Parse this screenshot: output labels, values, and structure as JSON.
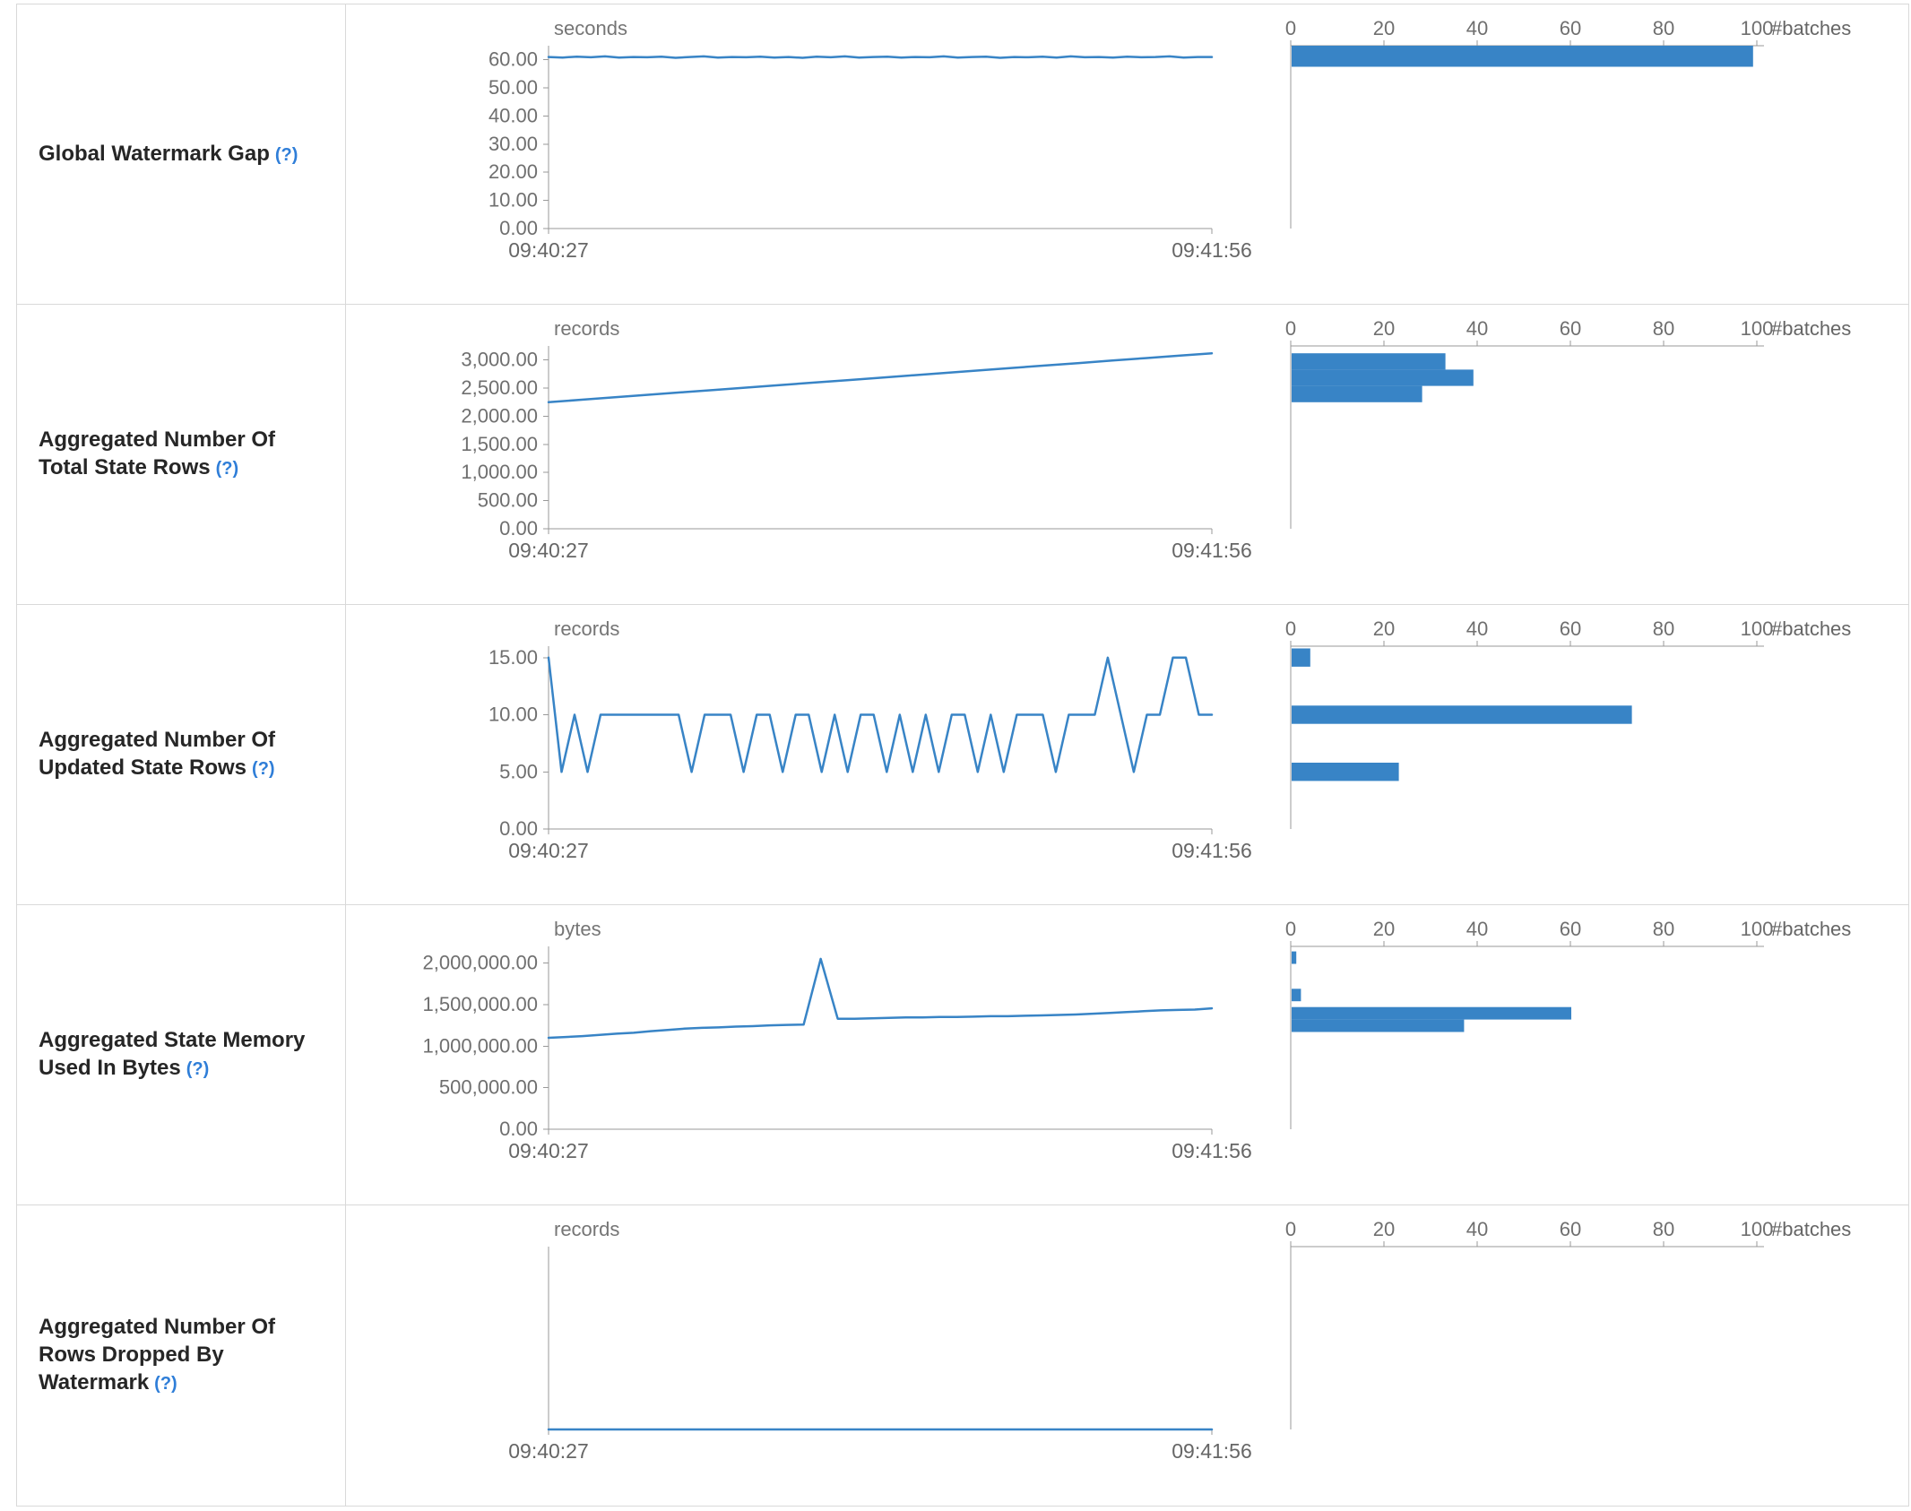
{
  "colors": {
    "accent": "#3884c6",
    "axis_line": "#999999",
    "tick_text": "#6f6f6f",
    "unit_text": "#757575",
    "time_text": "#666666",
    "label_text": "#262626",
    "help_link": "#2f7ed8",
    "border": "#d9d9d9",
    "background": "#ffffff"
  },
  "rows": [
    {
      "label": "Global Watermark Gap",
      "help": "(?)"
    },
    {
      "label": "Aggregated Number Of Total State Rows",
      "help": "(?)"
    },
    {
      "label": "Aggregated Number Of Updated State Rows",
      "help": "(?)"
    },
    {
      "label": "Aggregated State Memory Used In Bytes",
      "help": "(?)"
    },
    {
      "label": "Aggregated Number Of Rows Dropped By Watermark",
      "help": "(?)"
    }
  ],
  "chart_data": [
    {
      "type": "line",
      "title": "Global Watermark Gap",
      "timeline": {
        "unit": "seconds",
        "x_labels": [
          "09:40:27",
          "09:41:56"
        ],
        "y_max": 65,
        "tick_values": [
          60,
          50,
          40,
          30,
          20,
          10,
          0
        ],
        "tick_labels": [
          "60.00",
          "50.00",
          "40.00",
          "30.00",
          "20.00",
          "10.00",
          "0.00"
        ],
        "values": [
          61,
          60.8,
          61.1,
          60.9,
          61.2,
          60.8,
          61,
          60.9,
          61.1,
          60.7,
          61,
          61.2,
          60.8,
          61,
          60.9,
          61.1,
          60.8,
          61,
          60.7,
          61.1,
          60.9,
          61.2,
          60.8,
          61,
          61.1,
          60.8,
          61,
          60.9,
          61.2,
          60.8,
          61,
          61.1,
          60.7,
          61,
          60.9,
          61.1,
          60.8,
          61.2,
          60.9,
          61,
          60.8,
          61.1,
          60.9,
          61,
          61.2,
          60.8,
          61,
          61
        ]
      },
      "histogram": {
        "type": "bar",
        "x_label": "#batches",
        "x_max": 100,
        "tick_values": [
          0,
          20,
          40,
          60,
          80,
          100
        ],
        "bars": [
          {
            "from": 57.5,
            "to": 65,
            "count": 99
          }
        ]
      }
    },
    {
      "type": "line",
      "title": "Aggregated Number Of Total State Rows",
      "timeline": {
        "unit": "records",
        "x_labels": [
          "09:40:27",
          "09:41:56"
        ],
        "y_max": 3250,
        "tick_values": [
          3000,
          2500,
          2000,
          1500,
          1000,
          500,
          0
        ],
        "tick_labels": [
          "3,000.00",
          "2,500.00",
          "2,000.00",
          "1,500.00",
          "1,000.00",
          "500.00",
          "0.00"
        ],
        "values": [
          2250,
          2294,
          2337,
          2381,
          2424,
          2468,
          2511,
          2555,
          2598,
          2642,
          2685,
          2729,
          2772,
          2816,
          2859,
          2903,
          2946,
          2990,
          3033,
          3077,
          3120
        ]
      },
      "histogram": {
        "type": "bar",
        "x_label": "#batches",
        "x_max": 100,
        "tick_values": [
          0,
          20,
          40,
          60,
          80,
          100
        ],
        "bars": [
          {
            "from": 2830,
            "to": 3120,
            "count": 33
          },
          {
            "from": 2540,
            "to": 2830,
            "count": 39
          },
          {
            "from": 2250,
            "to": 2540,
            "count": 28
          }
        ]
      }
    },
    {
      "type": "line",
      "title": "Aggregated Number Of Updated State Rows",
      "timeline": {
        "unit": "records",
        "x_labels": [
          "09:40:27",
          "09:41:56"
        ],
        "y_max": 16,
        "tick_values": [
          15,
          10,
          5,
          0
        ],
        "tick_labels": [
          "15.00",
          "10.00",
          "5.00",
          "0.00"
        ],
        "values": [
          15,
          5,
          10,
          5,
          10,
          10,
          10,
          10,
          10,
          10,
          10,
          5,
          10,
          10,
          10,
          5,
          10,
          10,
          5,
          10,
          10,
          5,
          10,
          5,
          10,
          10,
          5,
          10,
          5,
          10,
          5,
          10,
          10,
          5,
          10,
          5,
          10,
          10,
          10,
          5,
          10,
          10,
          10,
          15,
          10,
          5,
          10,
          10,
          15,
          15,
          10,
          10
        ]
      },
      "histogram": {
        "type": "bar",
        "x_label": "#batches",
        "x_max": 100,
        "tick_values": [
          0,
          20,
          40,
          60,
          80,
          100
        ],
        "bars": [
          {
            "from": 14.2,
            "to": 15.8,
            "count": 4
          },
          {
            "from": 9.2,
            "to": 10.8,
            "count": 73
          },
          {
            "from": 4.2,
            "to": 5.8,
            "count": 23
          }
        ]
      }
    },
    {
      "type": "line",
      "title": "Aggregated State Memory Used In Bytes",
      "timeline": {
        "unit": "bytes",
        "x_labels": [
          "09:40:27",
          "09:41:56"
        ],
        "y_max": 2200000,
        "tick_values": [
          2000000,
          1500000,
          1000000,
          500000,
          0
        ],
        "tick_labels": [
          "2,000,000.00",
          "1,500,000.00",
          "1,000,000.00",
          "500,000.00",
          "0.00"
        ],
        "values": [
          1100000,
          1110000,
          1120000,
          1135000,
          1150000,
          1160000,
          1180000,
          1195000,
          1210000,
          1220000,
          1225000,
          1235000,
          1240000,
          1250000,
          1255000,
          1260000,
          2050000,
          1330000,
          1330000,
          1335000,
          1340000,
          1345000,
          1345000,
          1350000,
          1350000,
          1355000,
          1360000,
          1360000,
          1365000,
          1370000,
          1375000,
          1380000,
          1390000,
          1400000,
          1410000,
          1420000,
          1430000,
          1435000,
          1440000,
          1455000
        ]
      },
      "histogram": {
        "type": "bar",
        "x_label": "#batches",
        "x_max": 100,
        "tick_values": [
          0,
          20,
          40,
          60,
          80,
          100
        ],
        "bars": [
          {
            "from": 1990000,
            "to": 2140000,
            "count": 1
          },
          {
            "from": 1540000,
            "to": 1690000,
            "count": 2
          },
          {
            "from": 1320000,
            "to": 1470000,
            "count": 60
          },
          {
            "from": 1170000,
            "to": 1320000,
            "count": 37
          }
        ]
      }
    },
    {
      "type": "line",
      "title": "Aggregated Number Of Rows Dropped By Watermark",
      "timeline": {
        "unit": "records",
        "x_labels": [
          "09:40:27",
          "09:41:56"
        ],
        "y_max": 1,
        "tick_values": [],
        "tick_labels": [],
        "values": [
          0,
          0,
          0,
          0,
          0,
          0,
          0,
          0,
          0,
          0,
          0,
          0,
          0,
          0,
          0,
          0,
          0,
          0,
          0,
          0,
          0,
          0,
          0,
          0,
          0,
          0,
          0,
          0,
          0,
          0
        ]
      },
      "histogram": {
        "type": "bar",
        "x_label": "#batches",
        "x_max": 100,
        "tick_values": [
          0,
          20,
          40,
          60,
          80,
          100
        ],
        "bars": []
      }
    }
  ]
}
